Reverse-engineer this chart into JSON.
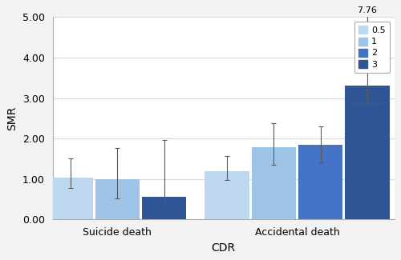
{
  "groups": [
    "Suicide death",
    "Accidental death"
  ],
  "legend_labels": [
    "0.5",
    "1",
    "2",
    "3"
  ],
  "bar_colors": [
    "#bdd7ee",
    "#9dc3e6",
    "#4472c4",
    "#2f5597"
  ],
  "suicide_color_indices": [
    0,
    1,
    3
  ],
  "accidental_color_indices": [
    0,
    1,
    2,
    3
  ],
  "bar_values": [
    [
      1.04,
      0.99,
      0.56
    ],
    [
      1.2,
      1.78,
      1.85,
      3.3
    ]
  ],
  "bar_errors_low": [
    [
      0.27,
      0.47,
      0.17
    ],
    [
      0.22,
      0.42,
      0.43,
      0.42
    ]
  ],
  "bar_errors_high": [
    [
      0.47,
      0.78,
      1.4
    ],
    [
      0.37,
      0.6,
      0.45,
      4.46
    ]
  ],
  "annotation_text": "7.76",
  "xlabel": "CDR",
  "ylabel": "SMR",
  "ylim": [
    0.0,
    5.0
  ],
  "yticks": [
    0.0,
    1.0,
    2.0,
    3.0,
    4.0,
    5.0
  ],
  "axis_fontsize": 10,
  "tick_fontsize": 9,
  "legend_fontsize": 8,
  "bar_width": 0.13,
  "figsize": [
    5.0,
    3.25
  ],
  "dpi": 100,
  "background_color": "#f2f2f2",
  "plot_bg_color": "#ffffff",
  "grid_color": "#d9d9d9",
  "error_color": "#595959"
}
